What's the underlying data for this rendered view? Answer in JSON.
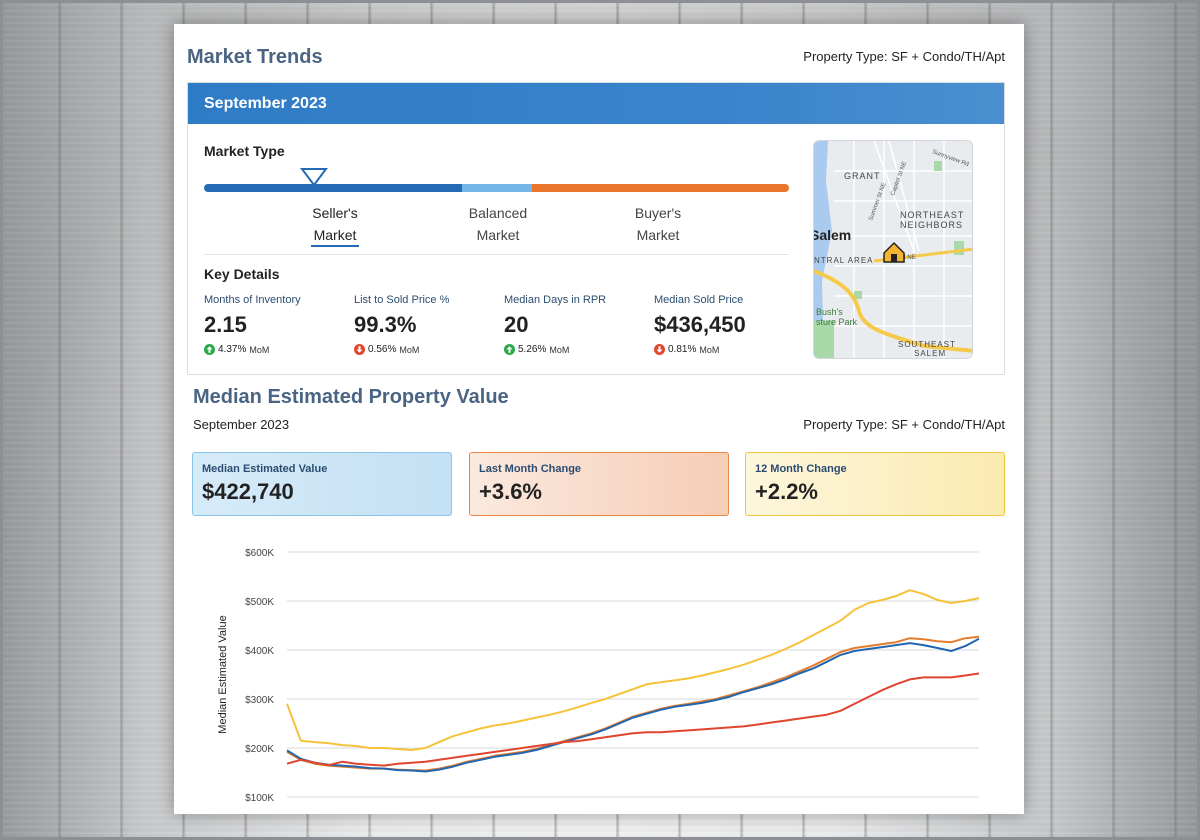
{
  "header": {
    "title": "Market Trends",
    "property_type": "Property Type: SF + Condo/TH/Apt"
  },
  "market_card": {
    "month": "September 2023",
    "market_type_label": "Market Type",
    "options": [
      {
        "line1": "Seller's",
        "line2": "Market"
      },
      {
        "line1": "Balanced",
        "line2": "Market"
      },
      {
        "line1": "Buyer's",
        "line2": "Market"
      }
    ],
    "selected_option": "Seller's Market",
    "key_details_label": "Key Details",
    "details": [
      {
        "label": "Months of Inventory",
        "value": "2.15",
        "change": "4.37%",
        "direction": "up",
        "unit": "MoM"
      },
      {
        "label": "List to Sold Price %",
        "value": "99.3%",
        "change": "0.56%",
        "direction": "down",
        "unit": "MoM"
      },
      {
        "label": "Median Days in RPR",
        "value": "20",
        "change": "5.26%",
        "direction": "up",
        "unit": "MoM"
      },
      {
        "label": "Median Sold Price",
        "value": "$436,450",
        "change": "0.81%",
        "direction": "down",
        "unit": "MoM"
      }
    ],
    "map_labels": {
      "grant": "GRANT",
      "sunnyview": "Sunnyview Rd",
      "summer": "Summer St NE",
      "capitol": "Capitol St NE",
      "northeast1": "NORTHEAST",
      "northeast2": "NEIGHBORS",
      "salem": "Salem",
      "central": "NTRAL AREA",
      "stne": "St NE",
      "bush1": "Bush's",
      "bush2": "sture Park",
      "southeast1": "SOUTHEAST",
      "southeast2": "SALEM"
    }
  },
  "value_section": {
    "title": "Median Estimated Property Value",
    "date": "September 2023",
    "property_type": "Property Type: SF + Condo/TH/Apt",
    "boxes": [
      {
        "label": "Median Estimated Value",
        "value": "$422,740"
      },
      {
        "label": "Last Month Change",
        "value": "+3.6%"
      },
      {
        "label": "12 Month Change",
        "value": "+2.2%"
      }
    ]
  },
  "colors": {
    "accent_blue": "#2f7cc6",
    "series_blue": "#2266b0",
    "series_orange": "#e57c2c",
    "series_yellow": "#f5c23a",
    "series_red": "#e0452f"
  },
  "chart_data": {
    "type": "line",
    "title": "",
    "xlabel": "",
    "ylabel": "Median Estimated Value",
    "ylim": [
      100000,
      600000
    ],
    "yticks": [
      "$100K",
      "$200K",
      "$300K",
      "$400K",
      "$500K",
      "$600K"
    ],
    "ytick_values": [
      100000,
      200000,
      300000,
      400000,
      500000,
      600000
    ],
    "grid": true,
    "x": [
      0,
      2,
      4,
      6,
      8,
      10,
      12,
      14,
      16,
      18,
      20,
      22,
      24,
      26,
      28,
      30,
      32,
      34,
      36,
      38,
      40,
      42,
      44,
      46,
      48,
      50,
      52,
      54,
      56,
      58,
      60,
      62,
      64,
      66,
      68,
      70,
      72,
      74,
      76,
      78,
      80,
      82,
      84,
      86,
      88,
      90,
      92,
      94,
      96,
      98,
      100
    ],
    "series": [
      {
        "color": "#f5c23a",
        "values": [
          290000,
          215000,
          212000,
          210000,
          206000,
          204000,
          200000,
          200000,
          198000,
          196000,
          200000,
          212000,
          224000,
          232000,
          240000,
          246000,
          250000,
          256000,
          262000,
          268000,
          275000,
          283000,
          292000,
          300000,
          310000,
          320000,
          330000,
          334000,
          338000,
          342000,
          348000,
          355000,
          362000,
          370000,
          380000,
          390000,
          402000,
          415000,
          430000,
          445000,
          460000,
          482000,
          496000,
          502000,
          510000,
          522000,
          514000,
          502000,
          496000,
          500000,
          506000
        ]
      },
      {
        "color": "#e57c2c",
        "values": [
          192000,
          176000,
          168000,
          164000,
          162000,
          160000,
          158000,
          158000,
          156000,
          155000,
          154000,
          158000,
          164000,
          172000,
          178000,
          184000,
          188000,
          192000,
          198000,
          206000,
          214000,
          222000,
          230000,
          240000,
          252000,
          264000,
          272000,
          280000,
          286000,
          290000,
          295000,
          300000,
          308000,
          316000,
          324000,
          334000,
          344000,
          356000,
          368000,
          382000,
          396000,
          404000,
          408000,
          412000,
          416000,
          424000,
          422000,
          418000,
          416000,
          424000,
          427000
        ]
      },
      {
        "color": "#2266b0",
        "values": [
          195000,
          178000,
          170000,
          166000,
          164000,
          162000,
          159000,
          158000,
          155000,
          154000,
          152000,
          156000,
          162000,
          170000,
          176000,
          182000,
          186000,
          190000,
          196000,
          204000,
          212000,
          220000,
          228000,
          238000,
          250000,
          262000,
          270000,
          278000,
          284000,
          288000,
          292000,
          298000,
          305000,
          314000,
          322000,
          330000,
          340000,
          352000,
          362000,
          376000,
          390000,
          398000,
          402000,
          406000,
          410000,
          414000,
          410000,
          404000,
          398000,
          408000,
          423000
        ]
      },
      {
        "color": "#e0452f",
        "values": [
          168000,
          176000,
          170000,
          165000,
          172000,
          168000,
          166000,
          164000,
          168000,
          170000,
          172000,
          176000,
          180000,
          184000,
          188000,
          192000,
          196000,
          200000,
          204000,
          208000,
          212000,
          214000,
          218000,
          222000,
          226000,
          230000,
          232000,
          232000,
          234000,
          236000,
          238000,
          240000,
          242000,
          244000,
          248000,
          252000,
          256000,
          260000,
          264000,
          268000,
          276000,
          290000,
          304000,
          318000,
          330000,
          340000,
          344000,
          344000,
          344000,
          348000,
          352000
        ]
      }
    ]
  }
}
